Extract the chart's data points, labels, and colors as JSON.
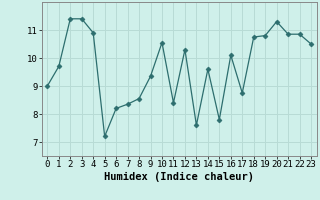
{
  "xlabel": "Humidex (Indice chaleur)",
  "x_values": [
    0,
    1,
    2,
    3,
    4,
    5,
    6,
    7,
    8,
    9,
    10,
    11,
    12,
    13,
    14,
    15,
    16,
    17,
    18,
    19,
    20,
    21,
    22,
    23
  ],
  "y_values": [
    9.0,
    9.7,
    11.4,
    11.4,
    10.9,
    7.2,
    8.2,
    8.35,
    8.55,
    9.35,
    10.55,
    8.4,
    10.3,
    7.6,
    9.6,
    7.8,
    10.1,
    8.75,
    10.75,
    10.8,
    11.3,
    10.85,
    10.85,
    10.5
  ],
  "line_color": "#2d6e6e",
  "marker": "D",
  "marker_size": 2.5,
  "background_color": "#cff0ea",
  "grid_color": "#b8dbd5",
  "ylim": [
    6.5,
    12.0
  ],
  "yticks": [
    7,
    8,
    9,
    10,
    11
  ],
  "xticks": [
    0,
    1,
    2,
    3,
    4,
    5,
    6,
    7,
    8,
    9,
    10,
    11,
    12,
    13,
    14,
    15,
    16,
    17,
    18,
    19,
    20,
    21,
    22,
    23
  ],
  "xlabel_fontsize": 7.5,
  "tick_fontsize": 6.5,
  "spine_color": "#888888"
}
